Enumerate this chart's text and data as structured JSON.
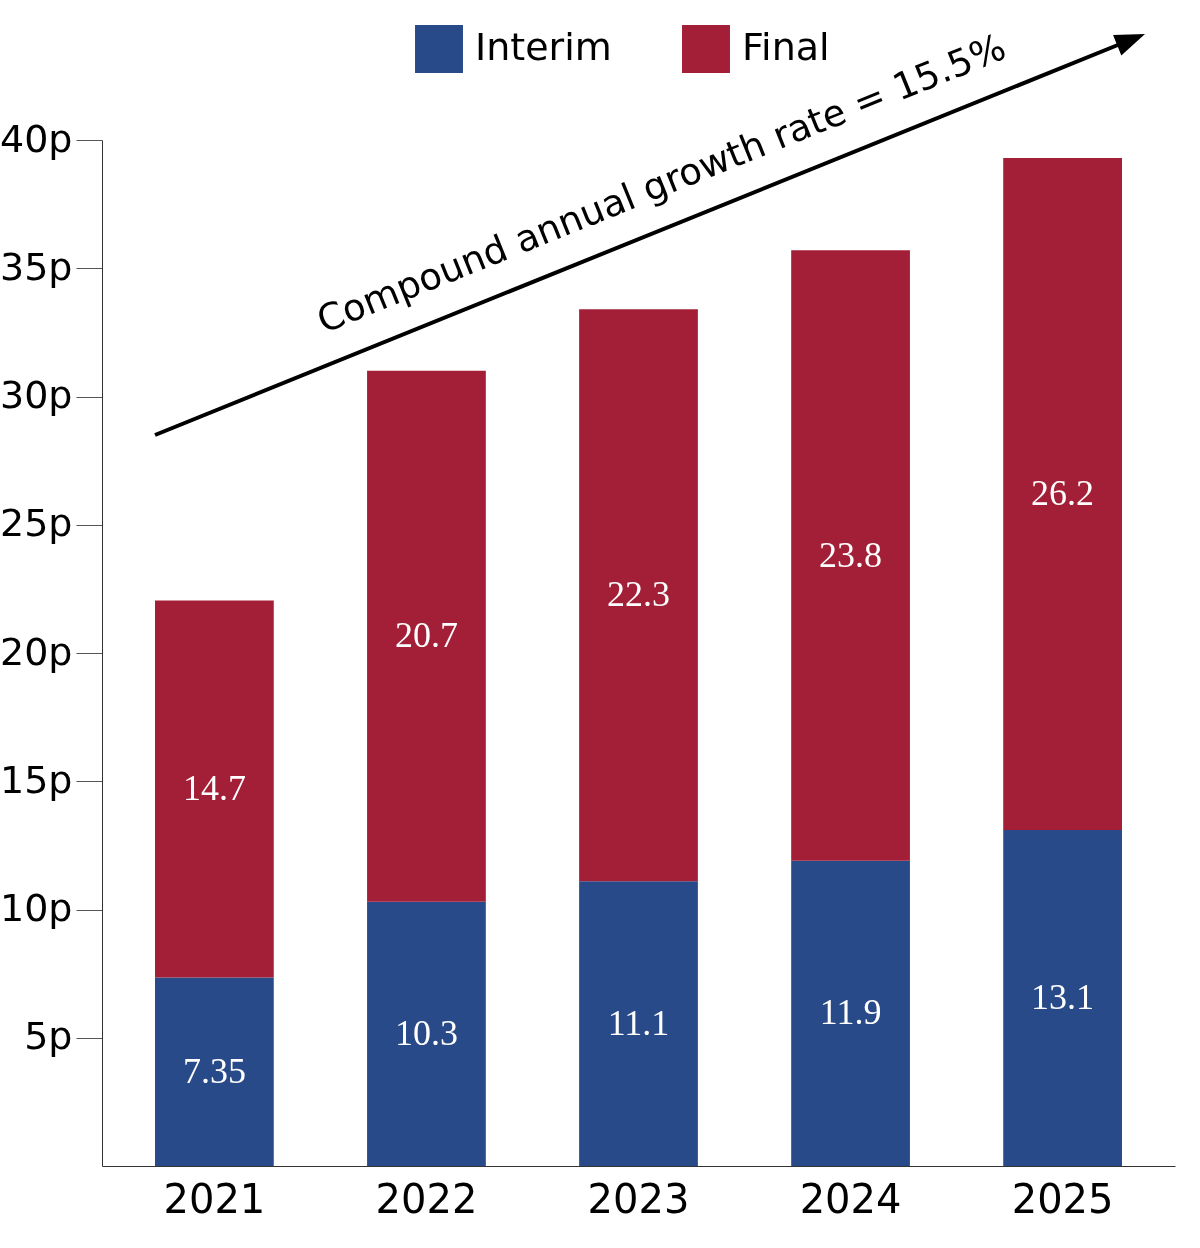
{
  "chart_data": {
    "type": "bar",
    "stacked": true,
    "categories": [
      "2021",
      "2022",
      "2023",
      "2024",
      "2025"
    ],
    "series": [
      {
        "name": "Interim",
        "color": "#294a89",
        "values": [
          7.35,
          10.3,
          11.1,
          11.9,
          13.1
        ]
      },
      {
        "name": "Final",
        "color": "#a31f37",
        "values": [
          14.7,
          20.7,
          22.3,
          23.8,
          26.2
        ]
      }
    ],
    "ylim": [
      0,
      40
    ],
    "yticks": [
      {
        "value": 5,
        "label": "5p"
      },
      {
        "value": 10,
        "label": "10p"
      },
      {
        "value": 15,
        "label": "15p"
      },
      {
        "value": 20,
        "label": "20p"
      },
      {
        "value": 25,
        "label": "25p"
      },
      {
        "value": 30,
        "label": "30p"
      },
      {
        "value": 35,
        "label": "35p"
      },
      {
        "value": 40,
        "label": "40p"
      }
    ],
    "data_labels": true,
    "legend": "top",
    "grid": false,
    "annotations": [
      "Compound annual growth rate = 15.5%"
    ]
  }
}
